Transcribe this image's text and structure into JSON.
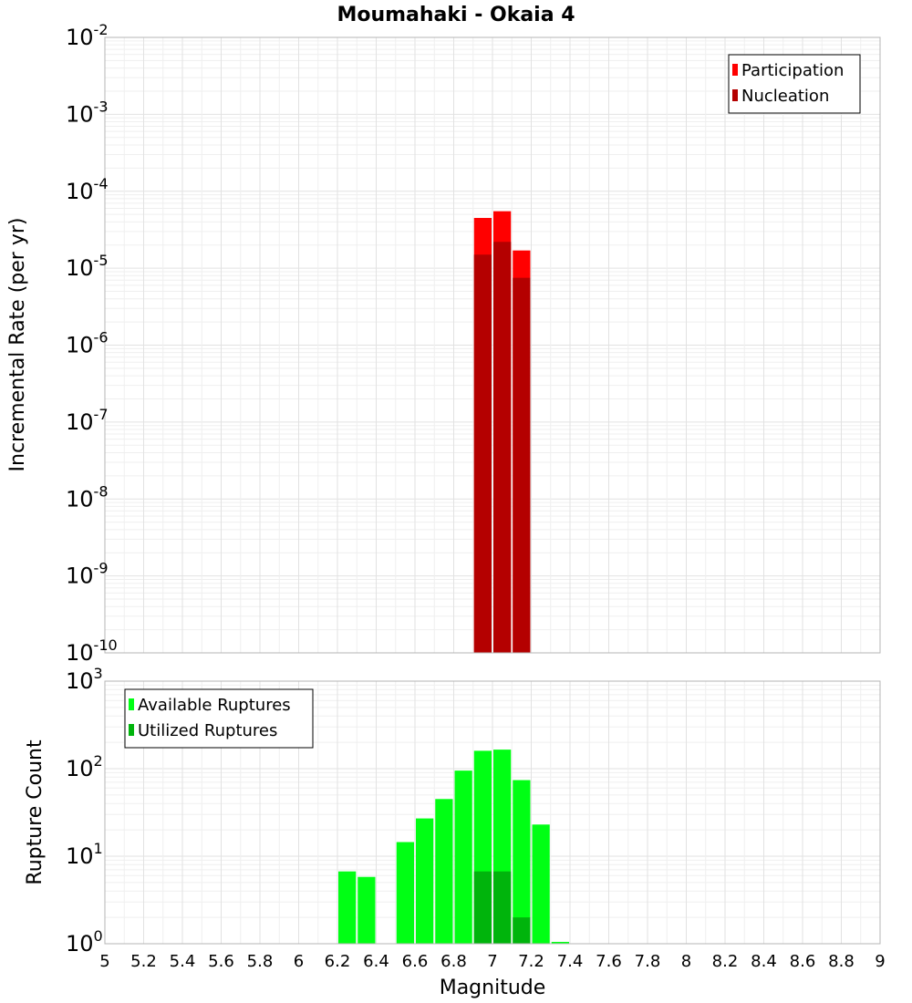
{
  "title": "Moumahaki - Okaia 4",
  "xlabel": "Magnitude",
  "chart_data": [
    {
      "type": "bar",
      "name": "incremental-rate",
      "ylabel": "Incremental Rate (per yr)",
      "yscale": "log",
      "ylim_exponents": [
        -10,
        -2
      ],
      "xlim": [
        5,
        9
      ],
      "bin_width": 0.1,
      "legend_position": "top-right",
      "series": [
        {
          "name": "Participation",
          "color": "#ff0000",
          "x": [
            6.95,
            7.05,
            7.15
          ],
          "values": [
            4.5e-05,
            5.5e-05,
            1.7e-05
          ]
        },
        {
          "name": "Nucleation",
          "color": "#b40000",
          "x": [
            6.95,
            7.05,
            7.15
          ],
          "values": [
            1.5e-05,
            2.2e-05,
            7.5e-06
          ]
        }
      ]
    },
    {
      "type": "bar",
      "name": "rupture-count",
      "ylabel": "Rupture Count",
      "yscale": "log",
      "ylim_exponents": [
        0,
        3
      ],
      "xlim": [
        5,
        9
      ],
      "bin_width": 0.1,
      "legend_position": "top-left",
      "series": [
        {
          "name": "Available Ruptures",
          "color": "#00ff14",
          "x": [
            6.25,
            6.35,
            6.55,
            6.65,
            6.75,
            6.85,
            6.95,
            7.05,
            7.15,
            7.25,
            7.35
          ],
          "values": [
            6.7,
            5.8,
            14.5,
            27,
            45,
            95,
            160,
            165,
            74,
            23,
            1.05
          ]
        },
        {
          "name": "Utilized Ruptures",
          "color": "#00b40c",
          "x": [
            6.95,
            7.05,
            7.15
          ],
          "values": [
            6.7,
            6.7,
            2
          ]
        }
      ]
    }
  ],
  "x_ticks": [
    "5",
    "5.2",
    "5.4",
    "5.6",
    "5.8",
    "6",
    "6.2",
    "6.4",
    "6.6",
    "6.8",
    "7",
    "7.2",
    "7.4",
    "7.6",
    "7.8",
    "8",
    "8.2",
    "8.4",
    "8.6",
    "8.8",
    "9"
  ]
}
